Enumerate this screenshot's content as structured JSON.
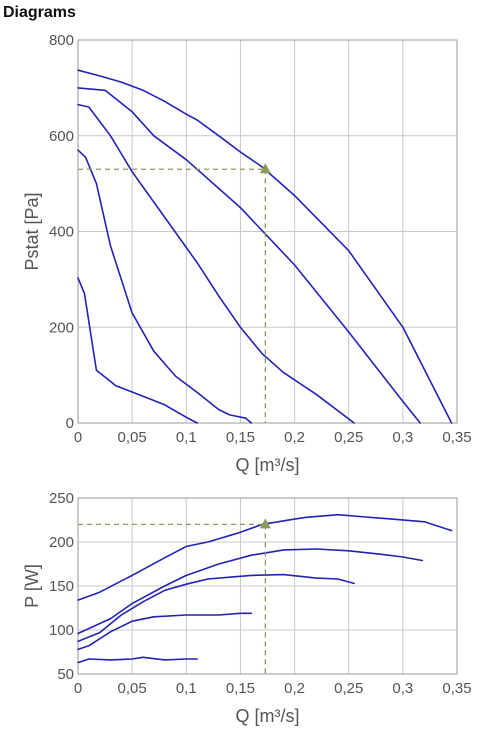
{
  "page": {
    "title": "Diagrams"
  },
  "chart_data": [
    {
      "type": "line",
      "xlabel": "Q [m³/s]",
      "ylabel": "Pstat [Pa]",
      "xlim": [
        0,
        0.35
      ],
      "ylim": [
        0,
        800
      ],
      "xticks": [
        0,
        0.05,
        0.1,
        0.15,
        0.2,
        0.25,
        0.3,
        0.35
      ],
      "yticks": [
        0,
        200,
        400,
        600,
        800
      ],
      "xtick_labels": [
        "0",
        "0,05",
        "0,1",
        "0,15",
        "0,2",
        "0,25",
        "0,3",
        "0,35"
      ],
      "ytick_labels": [
        "0",
        "200",
        "400",
        "600",
        "800"
      ],
      "grid": true,
      "line_color": "#2323b4",
      "marker_color": "#8a9a5b",
      "series": [
        {
          "x": [
            0,
            0.02,
            0.04,
            0.06,
            0.08,
            0.1,
            0.11,
            0.13,
            0.15,
            0.17,
            0.2,
            0.25,
            0.3,
            0.345
          ],
          "y": [
            737,
            725,
            712,
            695,
            672,
            645,
            633,
            600,
            566,
            535,
            475,
            360,
            200,
            0
          ]
        },
        {
          "x": [
            0,
            0.025,
            0.05,
            0.07,
            0.1,
            0.15,
            0.2,
            0.25,
            0.3,
            0.316
          ],
          "y": [
            700,
            695,
            650,
            600,
            550,
            450,
            330,
            190,
            45,
            0
          ]
        },
        {
          "x": [
            0,
            0.01,
            0.03,
            0.05,
            0.08,
            0.11,
            0.13,
            0.15,
            0.17,
            0.19,
            0.22,
            0.255
          ],
          "y": [
            665,
            660,
            600,
            525,
            430,
            335,
            265,
            200,
            145,
            105,
            60,
            0
          ]
        },
        {
          "x": [
            0,
            0.007,
            0.017,
            0.03,
            0.05,
            0.07,
            0.09,
            0.11,
            0.13,
            0.14,
            0.155,
            0.16
          ],
          "y": [
            570,
            555,
            500,
            370,
            230,
            150,
            98,
            64,
            28,
            17,
            10,
            0
          ]
        },
        {
          "x": [
            0,
            0.006,
            0.017,
            0.035,
            0.06,
            0.08,
            0.1,
            0.11
          ],
          "y": [
            303,
            270,
            110,
            78,
            56,
            38,
            12,
            0
          ]
        }
      ],
      "operating_point": {
        "x": 0.173,
        "y": 530
      }
    },
    {
      "type": "line",
      "xlabel": "Q [m³/s]",
      "ylabel": "P [W]",
      "xlim": [
        0,
        0.35
      ],
      "ylim": [
        50,
        250
      ],
      "xticks": [
        0,
        0.05,
        0.1,
        0.15,
        0.2,
        0.25,
        0.3,
        0.35
      ],
      "yticks": [
        50,
        100,
        150,
        200,
        250
      ],
      "xtick_labels": [
        "0",
        "0,05",
        "0,1",
        "0,15",
        "0,2",
        "0,25",
        "0,3",
        "0,35"
      ],
      "ytick_labels": [
        "50",
        "100",
        "150",
        "200",
        "250"
      ],
      "grid": true,
      "line_color": "#2323b4",
      "marker_color": "#8a9a5b",
      "series": [
        {
          "x": [
            0,
            0.02,
            0.05,
            0.08,
            0.1,
            0.12,
            0.15,
            0.17,
            0.2,
            0.21,
            0.24,
            0.26,
            0.29,
            0.32,
            0.345
          ],
          "y": [
            134,
            143,
            162,
            182,
            195,
            200,
            211,
            220,
            226,
            228,
            231,
            229,
            226,
            223,
            213
          ]
        },
        {
          "x": [
            0,
            0.03,
            0.05,
            0.08,
            0.1,
            0.13,
            0.16,
            0.19,
            0.22,
            0.25,
            0.28,
            0.3,
            0.318
          ],
          "y": [
            96,
            113,
            130,
            150,
            162,
            175,
            185,
            191,
            192,
            190,
            186,
            183,
            179
          ]
        },
        {
          "x": [
            0,
            0.02,
            0.04,
            0.06,
            0.08,
            0.1,
            0.12,
            0.14,
            0.16,
            0.19,
            0.22,
            0.24,
            0.255
          ],
          "y": [
            87,
            97,
            117,
            132,
            145,
            152,
            158,
            160,
            162,
            163,
            159,
            158,
            153
          ]
        },
        {
          "x": [
            0,
            0.01,
            0.03,
            0.05,
            0.07,
            0.1,
            0.13,
            0.15,
            0.16
          ],
          "y": [
            78,
            82,
            98,
            110,
            115,
            117,
            117,
            119,
            119
          ]
        },
        {
          "x": [
            0,
            0.01,
            0.03,
            0.05,
            0.06,
            0.08,
            0.1,
            0.11
          ],
          "y": [
            63,
            67,
            66,
            67,
            69,
            66,
            67,
            67
          ]
        }
      ],
      "operating_point": {
        "x": 0.173,
        "y": 220
      }
    }
  ]
}
